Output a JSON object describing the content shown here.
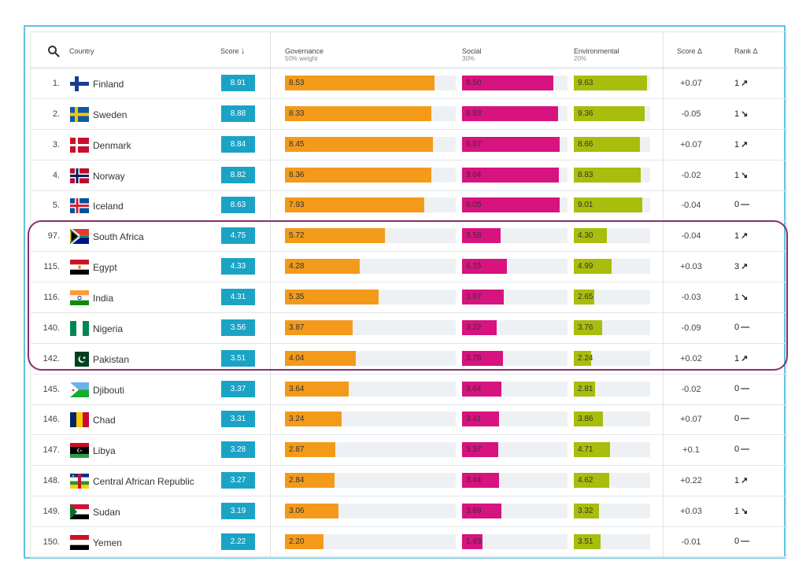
{
  "header": {
    "country": "Country",
    "score": "Score",
    "score_sort_icon": "arrow-down-icon",
    "governance": "Governance",
    "governance_sub": "50% weight",
    "social": "Social",
    "social_sub": "30%",
    "environmental": "Environmental",
    "environmental_sub": "20%",
    "score_delta": "Score Δ",
    "rank_delta": "Rank Δ"
  },
  "colors": {
    "score": "#1ba3c6",
    "governance": "#f39a1b",
    "social": "#d6137f",
    "environmental": "#a8bd0c",
    "highlight": "#8b2d6b",
    "frame": "#5fc3dc"
  },
  "rows": [
    {
      "rank": "1.",
      "country": "Finland",
      "flag": "finland",
      "score": "8.91",
      "gov": "8.53",
      "soc": "8.50",
      "env": "9.63",
      "score_delta": "+0.07",
      "rank_delta": "1",
      "dir": "up"
    },
    {
      "rank": "2.",
      "country": "Sweden",
      "flag": "sweden",
      "score": "8.88",
      "gov": "8.33",
      "soc": "8.93",
      "env": "9.36",
      "score_delta": "-0.05",
      "rank_delta": "1",
      "dir": "down"
    },
    {
      "rank": "3.",
      "country": "Denmark",
      "flag": "denmark",
      "score": "8.84",
      "gov": "8.45",
      "soc": "9.07",
      "env": "8.66",
      "score_delta": "+0.07",
      "rank_delta": "1",
      "dir": "up"
    },
    {
      "rank": "4.",
      "country": "Norway",
      "flag": "norway",
      "score": "8.82",
      "gov": "8.36",
      "soc": "9.04",
      "env": "8.83",
      "score_delta": "-0.02",
      "rank_delta": "1",
      "dir": "down"
    },
    {
      "rank": "5.",
      "country": "Iceland",
      "flag": "iceland",
      "score": "8.63",
      "gov": "7.93",
      "soc": "9.05",
      "env": "9.01",
      "score_delta": "-0.04",
      "rank_delta": "0",
      "dir": "flat"
    },
    {
      "rank": "97.",
      "country": "South Africa",
      "flag": "southafrica",
      "score": "4.75",
      "gov": "5.72",
      "soc": "3.58",
      "env": "4.30",
      "score_delta": "-0.04",
      "rank_delta": "1",
      "dir": "up"
    },
    {
      "rank": "115.",
      "country": "Egypt",
      "flag": "egypt",
      "score": "4.33",
      "gov": "4.28",
      "soc": "4.15",
      "env": "4.99",
      "score_delta": "+0.03",
      "rank_delta": "3",
      "dir": "up"
    },
    {
      "rank": "116.",
      "country": "India",
      "flag": "india",
      "score": "4.31",
      "gov": "5.35",
      "soc": "3.87",
      "env": "2.65",
      "score_delta": "-0.03",
      "rank_delta": "1",
      "dir": "down"
    },
    {
      "rank": "140.",
      "country": "Nigeria",
      "flag": "nigeria",
      "score": "3.56",
      "gov": "3.87",
      "soc": "3.22",
      "env": "3.76",
      "score_delta": "-0.09",
      "rank_delta": "0",
      "dir": "flat"
    },
    {
      "rank": "142.",
      "country": "Pakistan",
      "flag": "pakistan",
      "score": "3.51",
      "gov": "4.04",
      "soc": "3.78",
      "env": "2.24",
      "score_delta": "+0.02",
      "rank_delta": "1",
      "dir": "up"
    },
    {
      "rank": "145.",
      "country": "Djibouti",
      "flag": "djibouti",
      "score": "3.37",
      "gov": "3.64",
      "soc": "3.64",
      "env": "2.81",
      "score_delta": "-0.02",
      "rank_delta": "0",
      "dir": "flat"
    },
    {
      "rank": "146.",
      "country": "Chad",
      "flag": "chad",
      "score": "3.31",
      "gov": "3.24",
      "soc": "3.41",
      "env": "3.86",
      "score_delta": "+0.07",
      "rank_delta": "0",
      "dir": "flat"
    },
    {
      "rank": "147.",
      "country": "Libya",
      "flag": "libya",
      "score": "3.28",
      "gov": "2.87",
      "soc": "3.37",
      "env": "4.71",
      "score_delta": "+0.1",
      "rank_delta": "0",
      "dir": "flat"
    },
    {
      "rank": "148.",
      "country": "Central African Republic",
      "flag": "car",
      "score": "3.27",
      "gov": "2.84",
      "soc": "3.44",
      "env": "4.62",
      "score_delta": "+0.22",
      "rank_delta": "1",
      "dir": "up"
    },
    {
      "rank": "149.",
      "country": "Sudan",
      "flag": "sudan",
      "score": "3.19",
      "gov": "3.06",
      "soc": "3.69",
      "env": "3.32",
      "score_delta": "+0.03",
      "rank_delta": "1",
      "dir": "down"
    },
    {
      "rank": "150.",
      "country": "Yemen",
      "flag": "yemen",
      "score": "2.22",
      "gov": "2.20",
      "soc": "1.93",
      "env": "3.51",
      "score_delta": "-0.01",
      "rank_delta": "0",
      "dir": "flat"
    }
  ]
}
